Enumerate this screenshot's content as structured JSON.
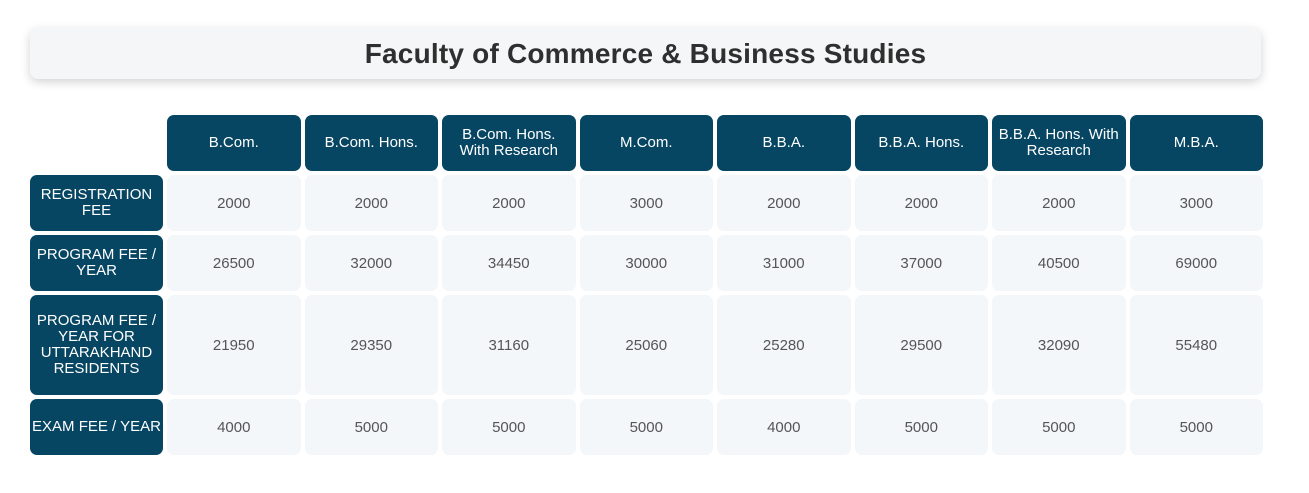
{
  "title": "Faculty of Commerce & Business Studies",
  "colors": {
    "header_bg": "#064663",
    "header_text": "#ffffff",
    "cell_bg": "#f3f7fa",
    "cell_text": "#555555",
    "title_bg": "#f5f6f8",
    "title_text": "#2f2f2f"
  },
  "table": {
    "columns": [
      "B.Com.",
      "B.Com. Hons.",
      "B.Com. Hons. With Research",
      "M.Com.",
      "B.B.A.",
      "B.B.A. Hons.",
      "B.B.A. Hons. With Research",
      "M.B.A."
    ],
    "rows": [
      {
        "label": "REGISTRATION FEE",
        "values": [
          "2000",
          "2000",
          "2000",
          "3000",
          "2000",
          "2000",
          "2000",
          "3000"
        ]
      },
      {
        "label": "PROGRAM FEE / YEAR",
        "values": [
          "26500",
          "32000",
          "34450",
          "30000",
          "31000",
          "37000",
          "40500",
          "69000"
        ]
      },
      {
        "label": "PROGRAM FEE / YEAR FOR UTTARAKHAND RESIDENTS",
        "values": [
          "21950",
          "29350",
          "31160",
          "25060",
          "25280",
          "29500",
          "32090",
          "55480"
        ]
      },
      {
        "label": "EXAM FEE / YEAR",
        "values": [
          "4000",
          "5000",
          "5000",
          "5000",
          "4000",
          "5000",
          "5000",
          "5000"
        ]
      }
    ]
  }
}
